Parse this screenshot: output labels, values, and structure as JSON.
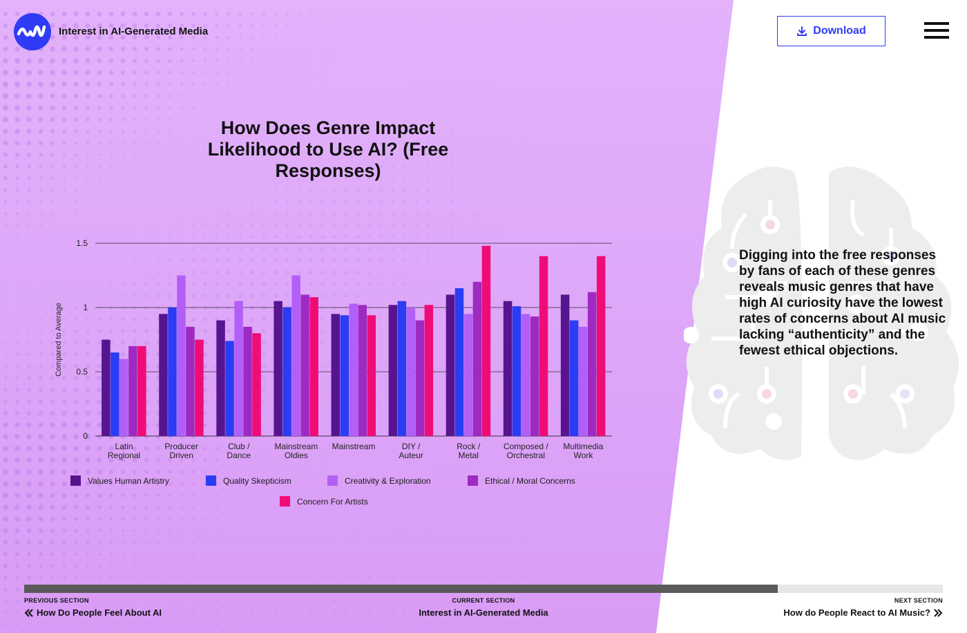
{
  "header": {
    "app_title": "Interest in AI-Generated Media",
    "download_label": "Download"
  },
  "chart_data": {
    "type": "bar",
    "title": "How Does Genre Impact Likelihood to Use AI? (Free Responses)",
    "xlabel": "",
    "ylabel": "Compared to Average",
    "ylim": [
      0,
      1.5
    ],
    "yticks": [
      0,
      0.5,
      1,
      1.5
    ],
    "ytick_labels": [
      "0",
      "0.5",
      "1",
      "1.5"
    ],
    "grid": true,
    "legend_position": "bottom",
    "categories": [
      [
        "Latin",
        "Regional"
      ],
      [
        "Producer",
        "Driven"
      ],
      [
        "Club /",
        "Dance"
      ],
      [
        "Mainstream",
        "Oldies"
      ],
      [
        "Mainstream"
      ],
      [
        "DIY /",
        "Auteur"
      ],
      [
        "Rock /",
        "Metal"
      ],
      [
        "Composed /",
        "Orchestral"
      ],
      [
        "Multimedia",
        "Work"
      ]
    ],
    "series": [
      {
        "name": "Values Human Artistry",
        "color": "#57148f",
        "values": [
          0.75,
          0.95,
          0.9,
          1.05,
          0.95,
          1.02,
          1.1,
          1.05,
          1.1
        ]
      },
      {
        "name": "Quality Skepticism",
        "color": "#2a3cf4",
        "values": [
          0.65,
          1.0,
          0.74,
          1.0,
          0.94,
          1.05,
          1.15,
          1.01,
          0.9
        ]
      },
      {
        "name": "Creativity & Exploration",
        "color": "#b25ff7",
        "values": [
          0.6,
          1.25,
          1.05,
          1.25,
          1.03,
          1.0,
          0.95,
          0.95,
          0.85
        ]
      },
      {
        "name": "Ethical / Moral Concerns",
        "color": "#9e2ac2",
        "values": [
          0.7,
          0.85,
          0.85,
          1.1,
          1.02,
          0.9,
          1.2,
          0.93,
          1.12
        ]
      },
      {
        "name": "Concern For Artists",
        "color": "#ef0c76",
        "values": [
          0.7,
          0.75,
          0.8,
          1.08,
          0.94,
          1.02,
          1.48,
          1.4,
          1.4
        ]
      }
    ]
  },
  "side_text": "Digging into the free responses by fans of each of these genres reveals music genres that have high AI curiosity have the lowest rates of concerns about AI music lacking “authenticity” and the fewest ethical objections.",
  "navigation": {
    "progress_fraction": 0.82,
    "previous_label": "PREVIOUS SECTION",
    "previous_title": "How Do People Feel About AI",
    "current_label": "CURRENT SECTION",
    "current_title": "Interest in AI-Generated Media",
    "next_label": "NEXT SECTION",
    "next_title": "How do People React to AI Music?"
  }
}
